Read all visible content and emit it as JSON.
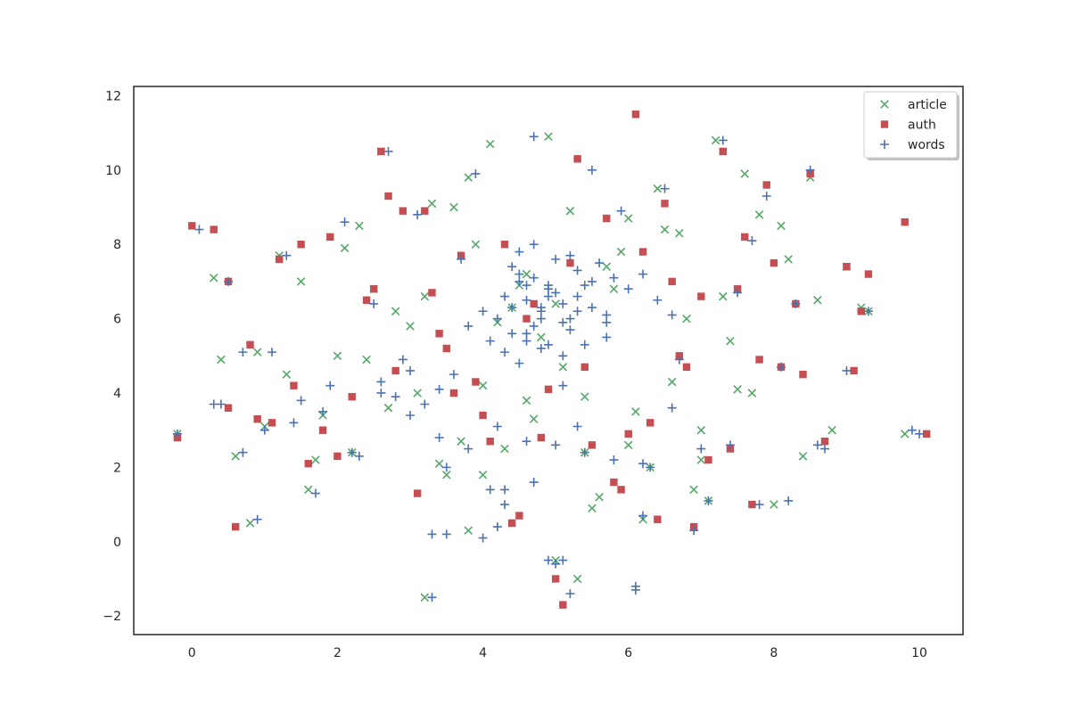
{
  "chart_data": {
    "type": "scatter",
    "title": "",
    "xlabel": "",
    "ylabel": "",
    "xlim": [
      -0.8,
      10.6
    ],
    "ylim": [
      -2.5,
      12.25
    ],
    "xticks": [
      0,
      2,
      4,
      6,
      8,
      10
    ],
    "yticks": [
      -2,
      0,
      2,
      4,
      6,
      8,
      10,
      12
    ],
    "grid": false,
    "legend_position": "top-right",
    "series": [
      {
        "name": "article",
        "marker": "x",
        "color": "#55a868",
        "x": [
          -0.2,
          0.4,
          0.6,
          0.9,
          1.3,
          1.6,
          1.8,
          2.1,
          2.3,
          2.6,
          2.8,
          3.0,
          3.2,
          3.4,
          3.6,
          3.8,
          4.0,
          4.1,
          4.3,
          4.5,
          4.6,
          4.8,
          5.0,
          5.2,
          5.4,
          5.6,
          5.8,
          6.0,
          6.2,
          6.4,
          6.6,
          6.8,
          7.0,
          7.2,
          7.4,
          7.6,
          7.8,
          8.0,
          8.2,
          8.4,
          8.6,
          9.0,
          9.3,
          1.0,
          1.5,
          2.0,
          2.5,
          3.1,
          3.5,
          3.9,
          4.2,
          4.7,
          5.1,
          5.5,
          5.9,
          6.3,
          6.7,
          7.1,
          7.5,
          0.3,
          0.8,
          1.2,
          2.2,
          2.7,
          3.3,
          3.7,
          4.4,
          4.9,
          5.3,
          5.7,
          6.1,
          6.5,
          6.9,
          7.3,
          7.7,
          8.1,
          8.5,
          9.2,
          1.7,
          2.4,
          3.8,
          4.0,
          5.0,
          6.0,
          7.0,
          8.8,
          9.8,
          3.2,
          4.6,
          5.4
        ],
        "y": [
          2.9,
          4.9,
          2.3,
          5.1,
          4.5,
          1.4,
          3.4,
          7.9,
          8.5,
          10.5,
          6.2,
          5.8,
          6.6,
          2.1,
          9.0,
          0.3,
          4.2,
          10.7,
          2.5,
          6.9,
          7.2,
          5.5,
          -0.5,
          8.9,
          3.9,
          1.2,
          6.8,
          2.6,
          0.6,
          9.5,
          4.3,
          6.0,
          2.2,
          10.8,
          5.4,
          9.9,
          8.8,
          1.0,
          7.6,
          2.3,
          6.5,
          7.4,
          6.2,
          3.1,
          7.0,
          5.0,
          6.8,
          4.0,
          1.8,
          8.0,
          5.9,
          3.3,
          4.7,
          0.9,
          7.8,
          2.0,
          8.3,
          1.1,
          4.1,
          7.1,
          0.5,
          7.7,
          2.4,
          3.6,
          9.1,
          2.7,
          6.3,
          10.9,
          -1.0,
          7.4,
          3.5,
          8.4,
          1.4,
          6.6,
          4.0,
          8.5,
          9.8,
          6.3,
          2.2,
          4.9,
          9.8,
          1.8,
          6.4,
          8.7,
          3.0,
          3.0,
          2.9,
          -1.5,
          3.8,
          2.4
        ]
      },
      {
        "name": "auth",
        "marker": "s",
        "color": "#c44e52",
        "x": [
          -0.2,
          0.0,
          0.3,
          0.5,
          0.6,
          0.9,
          1.2,
          1.4,
          1.6,
          1.9,
          2.2,
          2.4,
          2.6,
          2.7,
          2.9,
          3.1,
          3.3,
          3.5,
          3.7,
          3.9,
          4.1,
          4.3,
          4.5,
          4.7,
          4.9,
          5.1,
          5.3,
          5.5,
          5.7,
          5.9,
          6.1,
          6.3,
          6.5,
          6.7,
          6.9,
          7.1,
          7.3,
          7.5,
          7.7,
          7.9,
          8.1,
          8.3,
          8.5,
          8.7,
          9.0,
          9.3,
          9.8,
          10.1,
          0.8,
          1.5,
          2.0,
          2.8,
          3.4,
          4.0,
          4.6,
          5.2,
          5.8,
          6.0,
          6.4,
          7.0,
          7.6,
          8.4,
          9.2,
          1.1,
          2.5,
          3.6,
          4.8,
          5.0,
          6.2,
          6.8,
          7.4,
          8.0,
          0.5,
          1.8,
          3.2,
          4.4,
          5.4,
          6.6,
          7.8,
          9.1
        ],
        "y": [
          2.8,
          8.5,
          8.4,
          7.0,
          0.4,
          3.3,
          7.6,
          4.2,
          2.1,
          8.2,
          3.9,
          6.5,
          10.5,
          9.3,
          8.9,
          1.3,
          6.7,
          5.2,
          7.7,
          4.3,
          2.7,
          8.0,
          0.7,
          6.4,
          4.1,
          -1.7,
          10.3,
          2.6,
          8.7,
          1.4,
          11.5,
          3.2,
          9.1,
          5.0,
          0.4,
          2.2,
          10.5,
          6.8,
          1.0,
          9.6,
          4.7,
          6.4,
          9.9,
          2.7,
          7.4,
          7.2,
          8.6,
          2.9,
          5.3,
          8.0,
          2.3,
          4.6,
          5.6,
          3.4,
          6.0,
          7.5,
          1.6,
          2.9,
          0.6,
          6.6,
          8.2,
          4.5,
          6.2,
          3.2,
          6.8,
          4.0,
          2.8,
          -1.0,
          7.8,
          4.7,
          2.5,
          7.5,
          3.6,
          3.0,
          8.9,
          0.5,
          4.7,
          7.0,
          4.9,
          4.6
        ]
      },
      {
        "name": "words",
        "marker": "+",
        "color": "#4c72b0",
        "x": [
          -0.2,
          0.1,
          0.3,
          0.5,
          0.7,
          0.9,
          1.1,
          1.3,
          1.5,
          1.7,
          1.9,
          2.1,
          2.3,
          2.5,
          2.7,
          2.9,
          3.1,
          3.3,
          3.5,
          3.7,
          3.9,
          4.1,
          4.3,
          4.5,
          4.7,
          4.9,
          5.1,
          5.3,
          5.5,
          5.7,
          5.9,
          6.1,
          6.3,
          6.5,
          6.7,
          6.9,
          7.1,
          7.3,
          7.5,
          7.7,
          7.9,
          8.1,
          8.3,
          8.5,
          8.7,
          9.0,
          9.3,
          9.9,
          10.0,
          4.4,
          4.6,
          4.8,
          5.0,
          5.2,
          4.5,
          4.7,
          4.9,
          5.1,
          5.3,
          4.2,
          4.4,
          4.6,
          4.8,
          5.0,
          5.2,
          5.4,
          4.3,
          4.5,
          4.7,
          4.9,
          5.1,
          5.3,
          5.5,
          5.7,
          4.0,
          3.8,
          3.6,
          3.4,
          3.2,
          3.0,
          2.8,
          2.6,
          5.6,
          5.8,
          6.0,
          6.2,
          6.4,
          6.6,
          0.4,
          0.7,
          1.0,
          1.4,
          1.8,
          2.2,
          2.6,
          3.0,
          3.4,
          3.8,
          4.2,
          4.6,
          5.0,
          5.4,
          5.8,
          6.2,
          6.6,
          7.0,
          7.4,
          7.8,
          8.2,
          8.6,
          3.3,
          3.5,
          4.0,
          4.2,
          5.1,
          5.2,
          6.1,
          6.2,
          4.1,
          4.3,
          4.7,
          4.9,
          5.0,
          4.4,
          4.6,
          4.8,
          5.1,
          5.3,
          5.5,
          5.7,
          4.5,
          4.7,
          4.9,
          5.2,
          5.4,
          4.3,
          4.6,
          4.8
        ],
        "y": [
          2.9,
          8.4,
          3.7,
          7.0,
          2.4,
          0.6,
          5.1,
          7.7,
          3.8,
          1.3,
          4.2,
          8.6,
          2.3,
          6.4,
          10.5,
          4.9,
          8.8,
          0.2,
          2.0,
          7.6,
          9.9,
          5.4,
          1.4,
          7.2,
          10.9,
          6.8,
          4.2,
          3.1,
          10.0,
          6.1,
          8.9,
          -1.3,
          2.0,
          9.5,
          4.9,
          0.3,
          1.1,
          10.8,
          6.7,
          8.1,
          9.3,
          4.7,
          6.4,
          10.0,
          2.5,
          4.6,
          6.2,
          3.0,
          2.9,
          6.3,
          6.5,
          6.2,
          6.7,
          6.0,
          7.0,
          5.8,
          6.9,
          6.4,
          7.3,
          6.0,
          7.4,
          5.6,
          6.3,
          7.6,
          5.7,
          6.9,
          5.1,
          4.8,
          7.1,
          5.3,
          5.9,
          6.6,
          7.0,
          5.5,
          6.2,
          5.8,
          4.5,
          4.1,
          3.7,
          4.6,
          3.9,
          4.3,
          7.5,
          7.1,
          6.8,
          7.2,
          6.5,
          6.1,
          3.7,
          5.1,
          3.0,
          3.2,
          3.5,
          2.4,
          4.0,
          3.4,
          2.8,
          2.5,
          3.1,
          2.7,
          2.6,
          2.4,
          2.2,
          2.1,
          3.6,
          2.5,
          2.6,
          1.0,
          1.1,
          2.6,
          -1.5,
          0.2,
          0.1,
          0.4,
          -0.5,
          -1.4,
          -1.2,
          0.7,
          1.4,
          1.0,
          1.6,
          -0.5,
          -0.6,
          5.6,
          5.4,
          5.2,
          5.0,
          6.2,
          6.3,
          5.9,
          7.8,
          8.0,
          6.6,
          7.7,
          5.3,
          6.6,
          6.9,
          6.0
        ]
      }
    ]
  },
  "legend": {
    "entries": [
      "article",
      "auth",
      "words"
    ]
  }
}
